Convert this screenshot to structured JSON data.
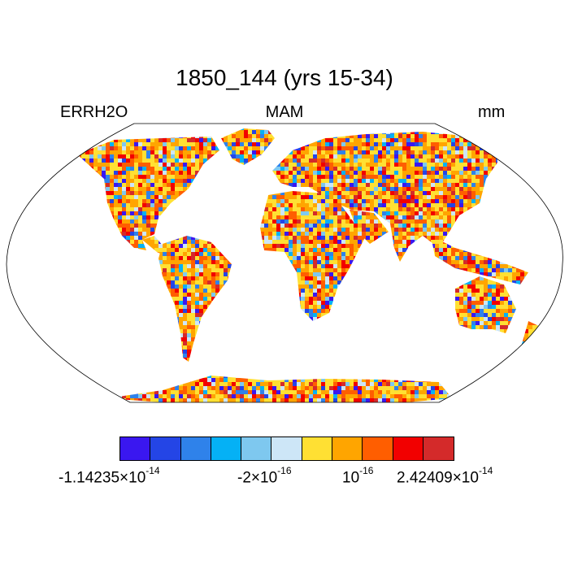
{
  "title": "1850_144 (yrs 15-34)",
  "left_label": "ERRH2O",
  "center_label": "MAM",
  "right_label": "mm",
  "colorbar": {
    "colors": [
      "#3a17f0",
      "#2445e6",
      "#2f82ea",
      "#05b1f5",
      "#7ec8ef",
      "#cde6f7",
      "#ffe033",
      "#ffa500",
      "#ff5e00",
      "#f20000",
      "#d42a2a"
    ],
    "ticks": [
      {
        "mantissa": "-1.14235",
        "times": "×",
        "base": "10",
        "exp": "-14"
      },
      {
        "mantissa": "-2",
        "times": "×",
        "base": "10",
        "exp": "-16"
      },
      {
        "mantissa": "",
        "times": "",
        "base": "10",
        "exp": "-16"
      },
      {
        "mantissa": "2.42409",
        "times": "×",
        "base": "10",
        "exp": "-14"
      }
    ]
  }
}
